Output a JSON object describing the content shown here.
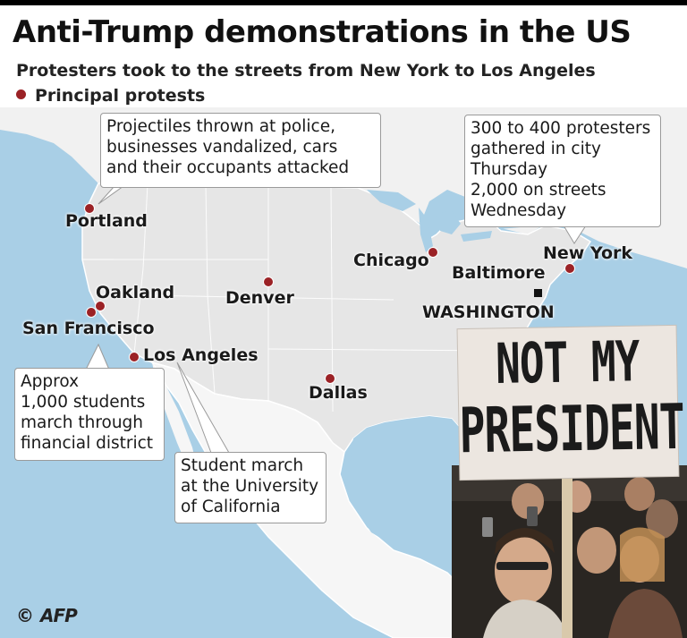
{
  "title": "Anti-Trump demonstrations in the US",
  "subtitle": "Protesters took to the streets from New York to Los Angeles",
  "legend": {
    "label": "Principal protests",
    "color": "#9b2226"
  },
  "cities": {
    "portland": "Portland",
    "oakland": "Oakland",
    "san_francisco": "San Francisco",
    "los_angeles": "Los Angeles",
    "denver": "Denver",
    "dallas": "Dallas",
    "chicago": "Chicago",
    "baltimore": "Baltimore",
    "new_york": "New York",
    "washington": "WASHINGTON"
  },
  "callouts": {
    "portland": [
      "Projectiles thrown at police,",
      "businesses vandalized, cars",
      "and their occupants attacked"
    ],
    "new_york": [
      "300 to 400 protesters",
      "gathered in city",
      "Thursday",
      "2,000 on streets",
      "Wednesday"
    ],
    "san_francisco": [
      "Approx",
      "1,000 students",
      "march through",
      "financial district"
    ],
    "los_angeles": [
      "Student march",
      "at the University",
      "of California"
    ]
  },
  "sign": {
    "line1": "NOT MY",
    "line2": "PRESIDENT"
  },
  "credit": {
    "symbol": "©",
    "agency": "AFP"
  },
  "colors": {
    "water": "#a9cfe6",
    "land": "#eeeeee",
    "mexico": "#f6f6f6",
    "border": "#ffffff"
  }
}
